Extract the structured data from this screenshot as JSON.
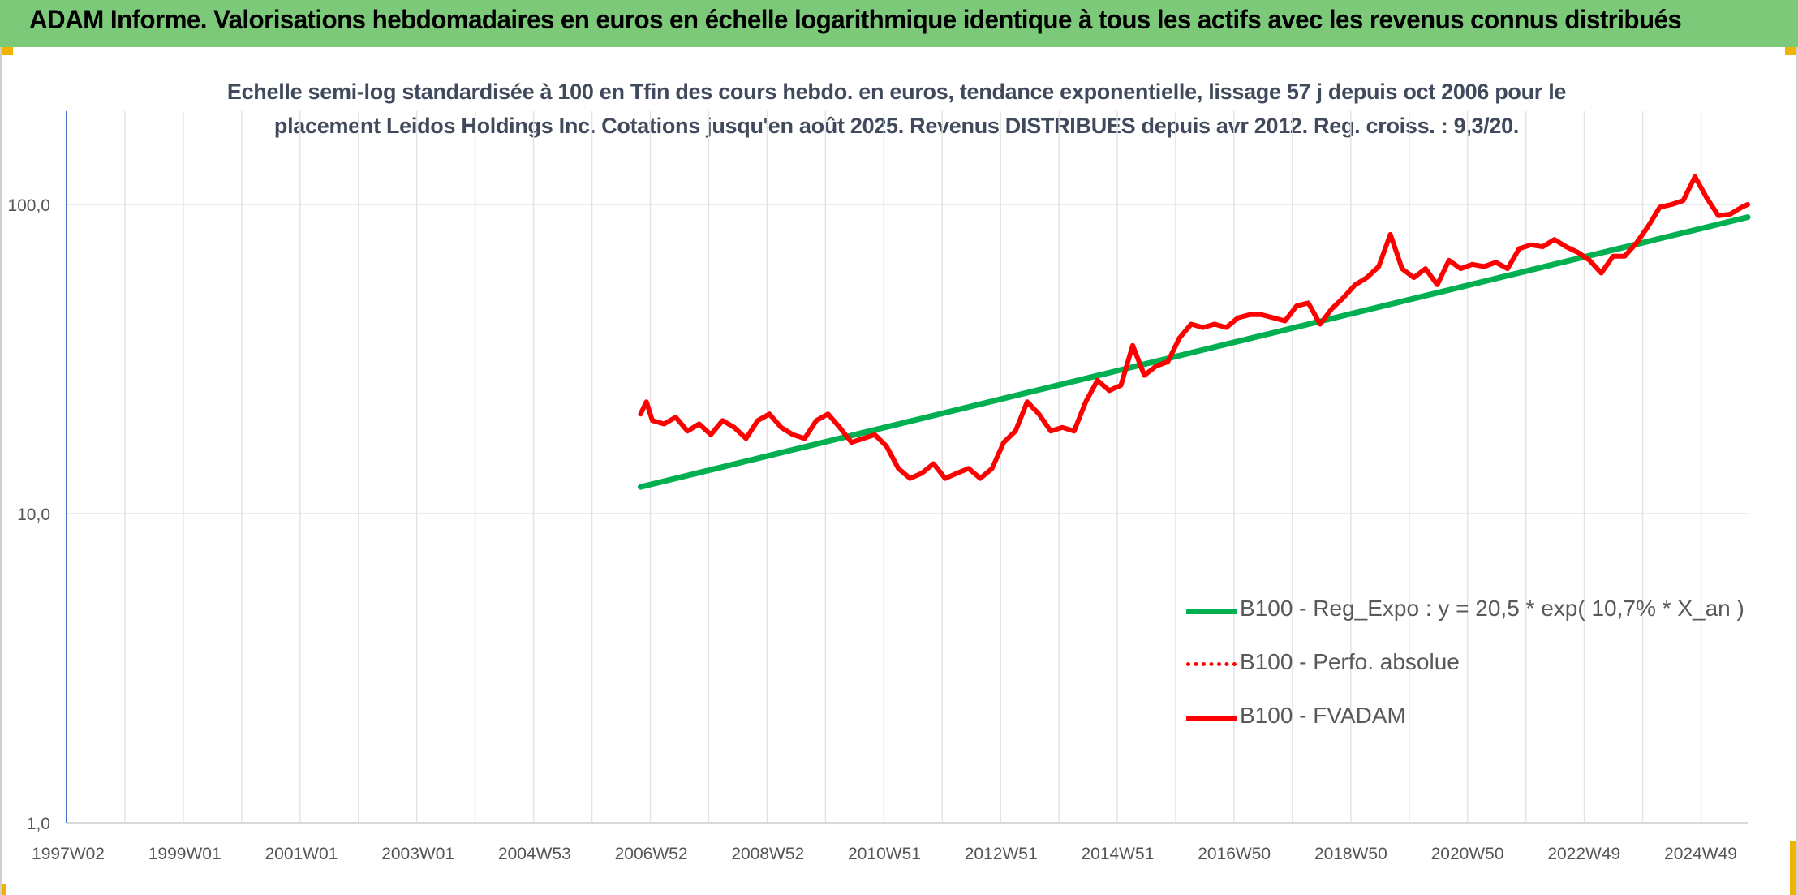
{
  "banner": {
    "title": "ADAM Informe. Valorisations hebdomadaires en euros en échelle logarithmique identique à tous les actifs avec les revenus connus distribués"
  },
  "chart_data": {
    "type": "line",
    "title_line1": "Echelle semi-log standardisée à 100 en Tfin des cours hebdo. en euros, tendance exponentielle, lissage 57 j depuis oct 2006 pour le",
    "title_line2": "placement Leidos Holdings Inc. Cotations jusqu'en août 2025. Revenus DISTRIBUES depuis avr 2012. Reg. croiss. : 9,3/20.",
    "y_scale": "log",
    "ylim": [
      1,
      200
    ],
    "y_ticks": [
      "1,0",
      "10,0",
      "100,0"
    ],
    "xlim": [
      1997.0,
      2025.7
    ],
    "x_ticks": [
      "1997W02",
      "1999W01",
      "2001W01",
      "2003W01",
      "2004W53",
      "2006W52",
      "2008W52",
      "2010W51",
      "2012W51",
      "2014W51",
      "2016W50",
      "2018W50",
      "2020W50",
      "2022W49",
      "2024W49"
    ],
    "grid": true,
    "legend_position": "bottom-right",
    "series": [
      {
        "name": "B100 - Reg_Expo : y = 20,5 * exp( 10,7% *  X_an )",
        "color": "#00b050",
        "style": "solid",
        "x": [
          2006.8,
          2025.7
        ],
        "y": [
          12.2,
          91.0
        ]
      },
      {
        "name": "B100 - Perfo. absolue",
        "color": "#ff0000",
        "style": "dotted",
        "x": [],
        "y": []
      },
      {
        "name": "B100 - FVADAM",
        "color": "#ff0000",
        "style": "solid",
        "x": [
          2006.8,
          2006.9,
          2007.0,
          2007.2,
          2007.4,
          2007.6,
          2007.8,
          2008.0,
          2008.2,
          2008.4,
          2008.6,
          2008.8,
          2009.0,
          2009.2,
          2009.4,
          2009.6,
          2009.8,
          2010.0,
          2010.2,
          2010.4,
          2010.6,
          2010.8,
          2011.0,
          2011.2,
          2011.4,
          2011.6,
          2011.8,
          2012.0,
          2012.2,
          2012.4,
          2012.6,
          2012.8,
          2013.0,
          2013.2,
          2013.4,
          2013.6,
          2013.8,
          2014.0,
          2014.2,
          2014.4,
          2014.6,
          2014.8,
          2015.0,
          2015.2,
          2015.4,
          2015.6,
          2015.8,
          2016.0,
          2016.2,
          2016.4,
          2016.6,
          2016.8,
          2017.0,
          2017.2,
          2017.4,
          2017.6,
          2017.8,
          2018.0,
          2018.2,
          2018.4,
          2018.6,
          2018.8,
          2019.0,
          2019.2,
          2019.4,
          2019.6,
          2019.8,
          2020.0,
          2020.2,
          2020.4,
          2020.6,
          2020.8,
          2021.0,
          2021.2,
          2021.4,
          2021.6,
          2021.8,
          2022.0,
          2022.2,
          2022.4,
          2022.6,
          2022.8,
          2023.0,
          2023.2,
          2023.4,
          2023.6,
          2023.8,
          2024.0,
          2024.2,
          2024.4,
          2024.6,
          2024.8,
          2025.0,
          2025.2,
          2025.4,
          2025.6,
          2025.7
        ],
        "y": [
          21.0,
          23.0,
          20.0,
          19.5,
          20.5,
          18.5,
          19.5,
          18.0,
          20.0,
          19.0,
          17.5,
          20.0,
          21.0,
          19.0,
          18.0,
          17.5,
          20.0,
          21.0,
          19.0,
          17.0,
          17.5,
          18.0,
          16.5,
          14.0,
          13.0,
          13.5,
          14.5,
          13.0,
          13.5,
          14.0,
          13.0,
          14.0,
          17.0,
          18.5,
          23.0,
          21.0,
          18.5,
          19.0,
          18.5,
          23.0,
          27.0,
          25.0,
          26.0,
          35.0,
          28.0,
          30.0,
          31.0,
          37.0,
          41.0,
          40.0,
          41.0,
          40.0,
          43.0,
          44.0,
          44.0,
          43.0,
          42.0,
          47.0,
          48.0,
          41.0,
          46.0,
          50.0,
          55.0,
          58.0,
          63.0,
          80.0,
          62.0,
          58.0,
          62.0,
          55.0,
          66.0,
          62.0,
          64.0,
          63.0,
          65.0,
          62.0,
          72.0,
          74.0,
          73.0,
          77.0,
          73.0,
          70.0,
          66.0,
          60.0,
          68.0,
          68.0,
          75.0,
          85.0,
          98.0,
          100.0,
          103.0,
          123.0,
          105.0,
          92.0,
          93.0,
          98.0,
          100.0
        ]
      }
    ]
  }
}
